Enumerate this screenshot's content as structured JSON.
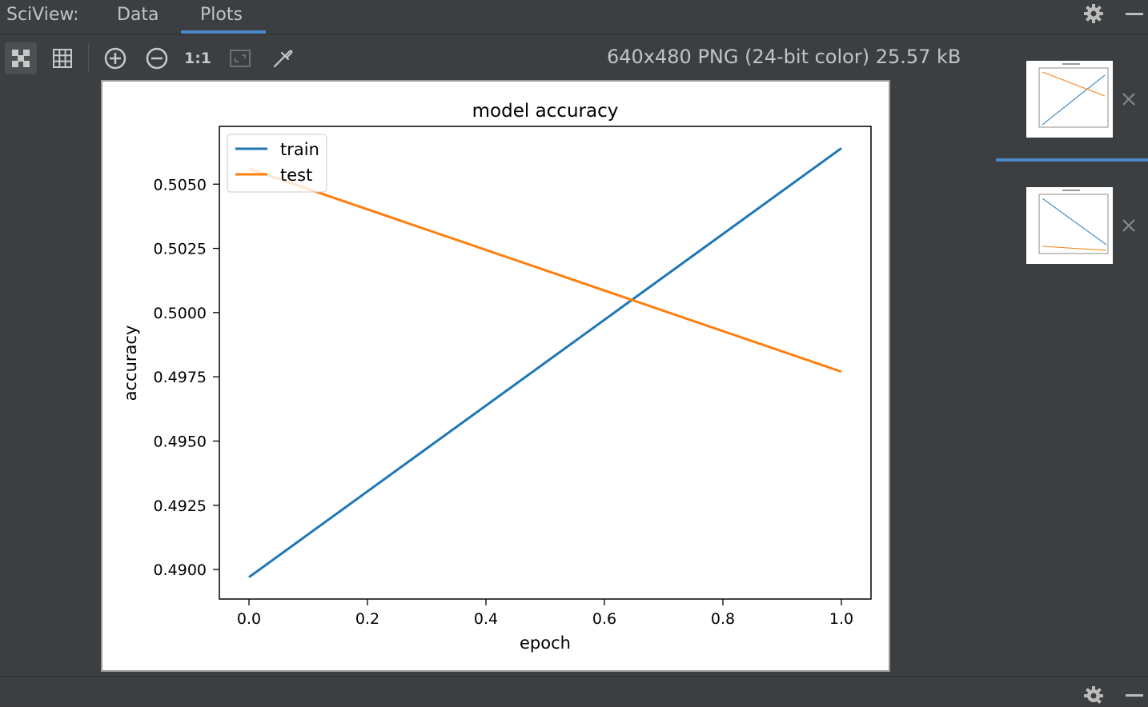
{
  "header": {
    "app_label": "SciView:",
    "tabs": [
      {
        "label": "Data",
        "active": false
      },
      {
        "label": "Plots",
        "active": true
      }
    ],
    "accent_color": "#4a88c7"
  },
  "toolbar": {
    "buttons": [
      {
        "name": "fit-to-window-icon",
        "active": true
      },
      {
        "name": "grid-icon",
        "active": false
      },
      {
        "name": "zoom-in-icon",
        "active": false
      },
      {
        "name": "zoom-out-icon",
        "active": false
      },
      {
        "name": "actual-size-icon",
        "label": "1:1",
        "active": false
      },
      {
        "name": "fit-zoom-icon",
        "active": false
      },
      {
        "name": "eyedropper-icon",
        "active": false
      }
    ],
    "image_info": "640x480 PNG (24-bit color) 25.57 kB"
  },
  "chart_data": {
    "type": "line",
    "title": "model accuracy",
    "xlabel": "epoch",
    "ylabel": "accuracy",
    "x": [
      0.0,
      1.0
    ],
    "xlim": [
      -0.05,
      1.05
    ],
    "ylim": [
      0.48885,
      0.50725
    ],
    "xticks": [
      "0.0",
      "0.2",
      "0.4",
      "0.6",
      "0.8",
      "1.0"
    ],
    "xtick_values": [
      0.0,
      0.2,
      0.4,
      0.6,
      0.8,
      1.0
    ],
    "yticks": [
      "0.4900",
      "0.4925",
      "0.4950",
      "0.4975",
      "0.5000",
      "0.5025",
      "0.5050"
    ],
    "ytick_values": [
      0.49,
      0.4925,
      0.495,
      0.4975,
      0.5,
      0.5025,
      0.505
    ],
    "series": [
      {
        "name": "train",
        "color": "#1f77b4",
        "values": [
          0.4897,
          0.5064
        ]
      },
      {
        "name": "test",
        "color": "#ff7f0e",
        "values": [
          0.5056,
          0.4977
        ]
      }
    ],
    "legend": "upper-left",
    "grid": false
  },
  "thumbnails": [
    {
      "name": "plot-thumbnail-1",
      "selected": true
    },
    {
      "name": "plot-thumbnail-2",
      "selected": false
    }
  ]
}
